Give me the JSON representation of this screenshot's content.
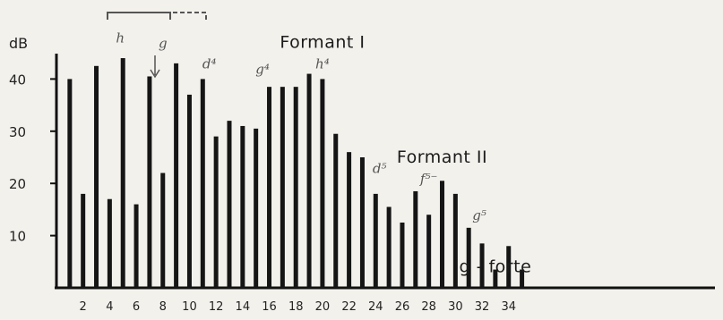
{
  "chart_data": {
    "type": "bar",
    "ylabel": "dB",
    "ylim": [
      0,
      50
    ],
    "yticks": [
      10,
      20,
      30,
      40
    ],
    "xlim": [
      0,
      35.5
    ],
    "xticks": [
      2,
      4,
      6,
      8,
      10,
      12,
      14,
      16,
      18,
      20,
      22,
      24,
      26,
      28,
      30,
      32,
      34
    ],
    "x": [
      1,
      2,
      3,
      4,
      5,
      6,
      7,
      8,
      9,
      10,
      11,
      12,
      13,
      14,
      15,
      16,
      17,
      18,
      19,
      20,
      21,
      22,
      23,
      24,
      25,
      26,
      27,
      28,
      29,
      30,
      31,
      32,
      33,
      34,
      35
    ],
    "values": [
      40,
      18,
      42.5,
      17,
      44,
      16,
      40.5,
      22,
      43,
      37,
      40,
      29,
      32,
      31,
      30.5,
      38.5,
      38.5,
      38.5,
      41,
      40,
      29.5,
      26,
      25,
      18,
      15.5,
      12.5,
      18.5,
      14,
      20.5,
      18,
      11.5,
      8.5,
      3.5,
      8,
      3.5
    ],
    "annotations": [
      {
        "text": "Formant I",
        "x": 20,
        "y": 46
      },
      {
        "text": "Formant II",
        "x": 29,
        "y": 24
      },
      {
        "text": "g - forte",
        "x": 33,
        "y": 3
      }
    ],
    "handwritten": [
      {
        "text": "h",
        "x": 4.8,
        "y": 47
      },
      {
        "text": "g",
        "x": 8,
        "y": 46
      },
      {
        "text": "d⁴",
        "x": 11.5,
        "y": 42
      },
      {
        "text": "g⁴",
        "x": 15.5,
        "y": 41
      },
      {
        "text": "h⁴",
        "x": 20,
        "y": 42
      },
      {
        "text": "d⁵",
        "x": 24.3,
        "y": 22
      },
      {
        "text": "f⁵⁻",
        "x": 28,
        "y": 20
      },
      {
        "text": "g⁵",
        "x": 31.8,
        "y": 13
      }
    ]
  }
}
